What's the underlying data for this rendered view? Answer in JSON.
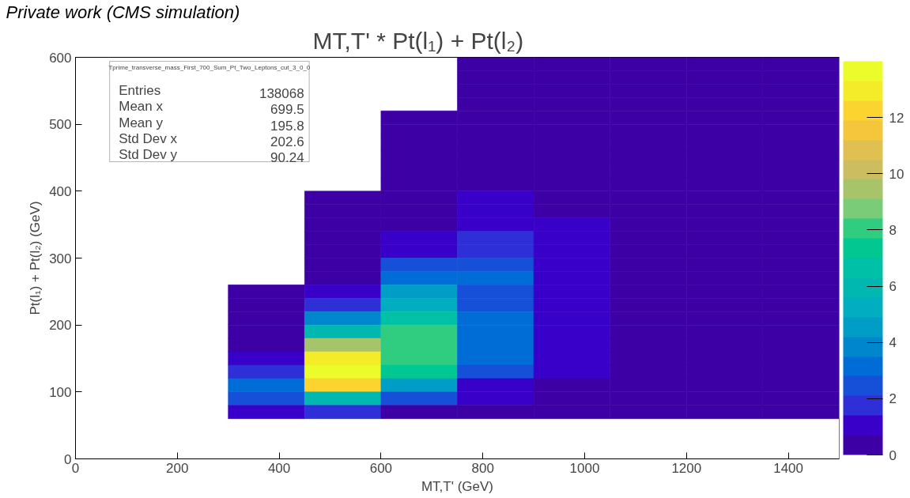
{
  "chart_data": {
    "type": "heatmap",
    "title": "MT,T' * Pt(l₁) + Pt(l₂)",
    "subtitle": "Private work (CMS simulation)",
    "xlabel": "MT,T' (GeV)",
    "ylabel": "Pt(l₁) + Pt(l₂) (GeV)",
    "annotations": [
      "Tprime_transverse_mass_First_700_Sum_Pt_Two_Leptons_cut_3_0_0",
      "Entries 138068",
      "Mean x 699.5",
      "Mean y 195.8",
      "Std Dev x 202.6",
      "Std Dev y 90.24"
    ],
    "x": [
      75,
      225,
      375,
      525,
      675,
      825,
      975,
      1125,
      1275,
      1425
    ],
    "y": [
      590,
      570,
      550,
      530,
      510,
      490,
      470,
      450,
      430,
      410,
      390,
      370,
      350,
      330,
      310,
      290,
      270,
      250,
      230,
      210,
      190,
      170,
      150,
      130,
      110,
      90,
      70
    ],
    "xlim": [
      0,
      1500
    ],
    "xticks": [
      0,
      200,
      400,
      600,
      800,
      1000,
      1200,
      1400
    ],
    "ylim": [
      0,
      600
    ],
    "yticks": [
      0,
      100,
      200,
      300,
      400,
      500,
      600
    ],
    "clim": [
      0,
      14
    ],
    "cticks": [
      0,
      2,
      4,
      6,
      8,
      10,
      12
    ],
    "cells": [
      [
        null,
        null,
        null,
        null,
        null,
        0.3,
        0.3,
        0.3,
        0.3,
        0.3
      ],
      [
        null,
        null,
        null,
        null,
        null,
        0.3,
        0.3,
        0.3,
        0.3,
        0.3
      ],
      [
        null,
        null,
        null,
        null,
        null,
        0.3,
        0.3,
        0.3,
        0.3,
        0.3
      ],
      [
        null,
        null,
        null,
        null,
        null,
        0.3,
        0.3,
        0.3,
        0.3,
        0.3
      ],
      [
        null,
        null,
        null,
        null,
        0.3,
        0.3,
        0.3,
        0.3,
        0.3,
        0.3
      ],
      [
        null,
        null,
        null,
        null,
        0.3,
        0.3,
        0.3,
        0.3,
        0.3,
        0.3
      ],
      [
        null,
        null,
        null,
        null,
        0.3,
        0.3,
        0.3,
        0.3,
        0.3,
        0.3
      ],
      [
        null,
        null,
        null,
        null,
        0.3,
        0.3,
        0.3,
        0.3,
        0.3,
        0.3
      ],
      [
        null,
        null,
        null,
        null,
        0.3,
        0.3,
        0.3,
        0.3,
        0.3,
        0.3
      ],
      [
        null,
        null,
        null,
        null,
        0.3,
        0.3,
        0.3,
        0.3,
        0.3,
        0.3
      ],
      [
        null,
        null,
        null,
        0.3,
        0.3,
        1.0,
        0.3,
        0.3,
        0.3,
        0.3
      ],
      [
        null,
        null,
        null,
        0.3,
        0.3,
        1.0,
        0.3,
        0.3,
        0.3,
        0.3
      ],
      [
        null,
        null,
        null,
        0.3,
        0.3,
        1.0,
        1.0,
        0.3,
        0.3,
        0.3
      ],
      [
        null,
        null,
        null,
        0.3,
        1.0,
        1.7,
        1.0,
        0.3,
        0.3,
        0.3
      ],
      [
        null,
        null,
        null,
        0.3,
        1.0,
        1.7,
        1.0,
        0.3,
        0.3,
        0.3
      ],
      [
        null,
        null,
        null,
        0.3,
        2.4,
        2.4,
        1.0,
        0.3,
        0.3,
        0.3
      ],
      [
        null,
        null,
        null,
        0.3,
        3.1,
        3.1,
        1.0,
        0.3,
        0.3,
        0.3
      ],
      [
        null,
        null,
        0.3,
        1.0,
        4.5,
        2.4,
        1.0,
        0.3,
        0.3,
        0.3
      ],
      [
        null,
        null,
        0.3,
        1.7,
        5.2,
        2.4,
        1.0,
        0.3,
        0.3,
        0.3
      ],
      [
        null,
        null,
        0.3,
        3.8,
        6.6,
        3.1,
        1.0,
        0.3,
        0.3,
        0.3
      ],
      [
        null,
        null,
        0.3,
        5.9,
        8.0,
        3.1,
        1.0,
        0.3,
        0.3,
        0.3
      ],
      [
        null,
        null,
        0.3,
        9.4,
        8.0,
        3.1,
        1.0,
        0.3,
        0.3,
        0.3
      ],
      [
        null,
        null,
        1.0,
        12.9,
        8.0,
        3.1,
        1.0,
        0.3,
        0.3,
        0.3
      ],
      [
        null,
        null,
        1.7,
        13.6,
        7.3,
        2.4,
        1.0,
        0.3,
        0.3,
        0.3
      ],
      [
        null,
        null,
        3.1,
        12.2,
        4.5,
        1.0,
        0.3,
        0.3,
        0.3,
        0.3
      ],
      [
        null,
        null,
        2.4,
        5.9,
        2.4,
        1.0,
        0.3,
        0.3,
        0.3,
        0.3
      ],
      [
        null,
        null,
        1.0,
        1.7,
        0.3,
        0.3,
        0.3,
        0.3,
        0.3,
        0.3
      ]
    ]
  }
}
